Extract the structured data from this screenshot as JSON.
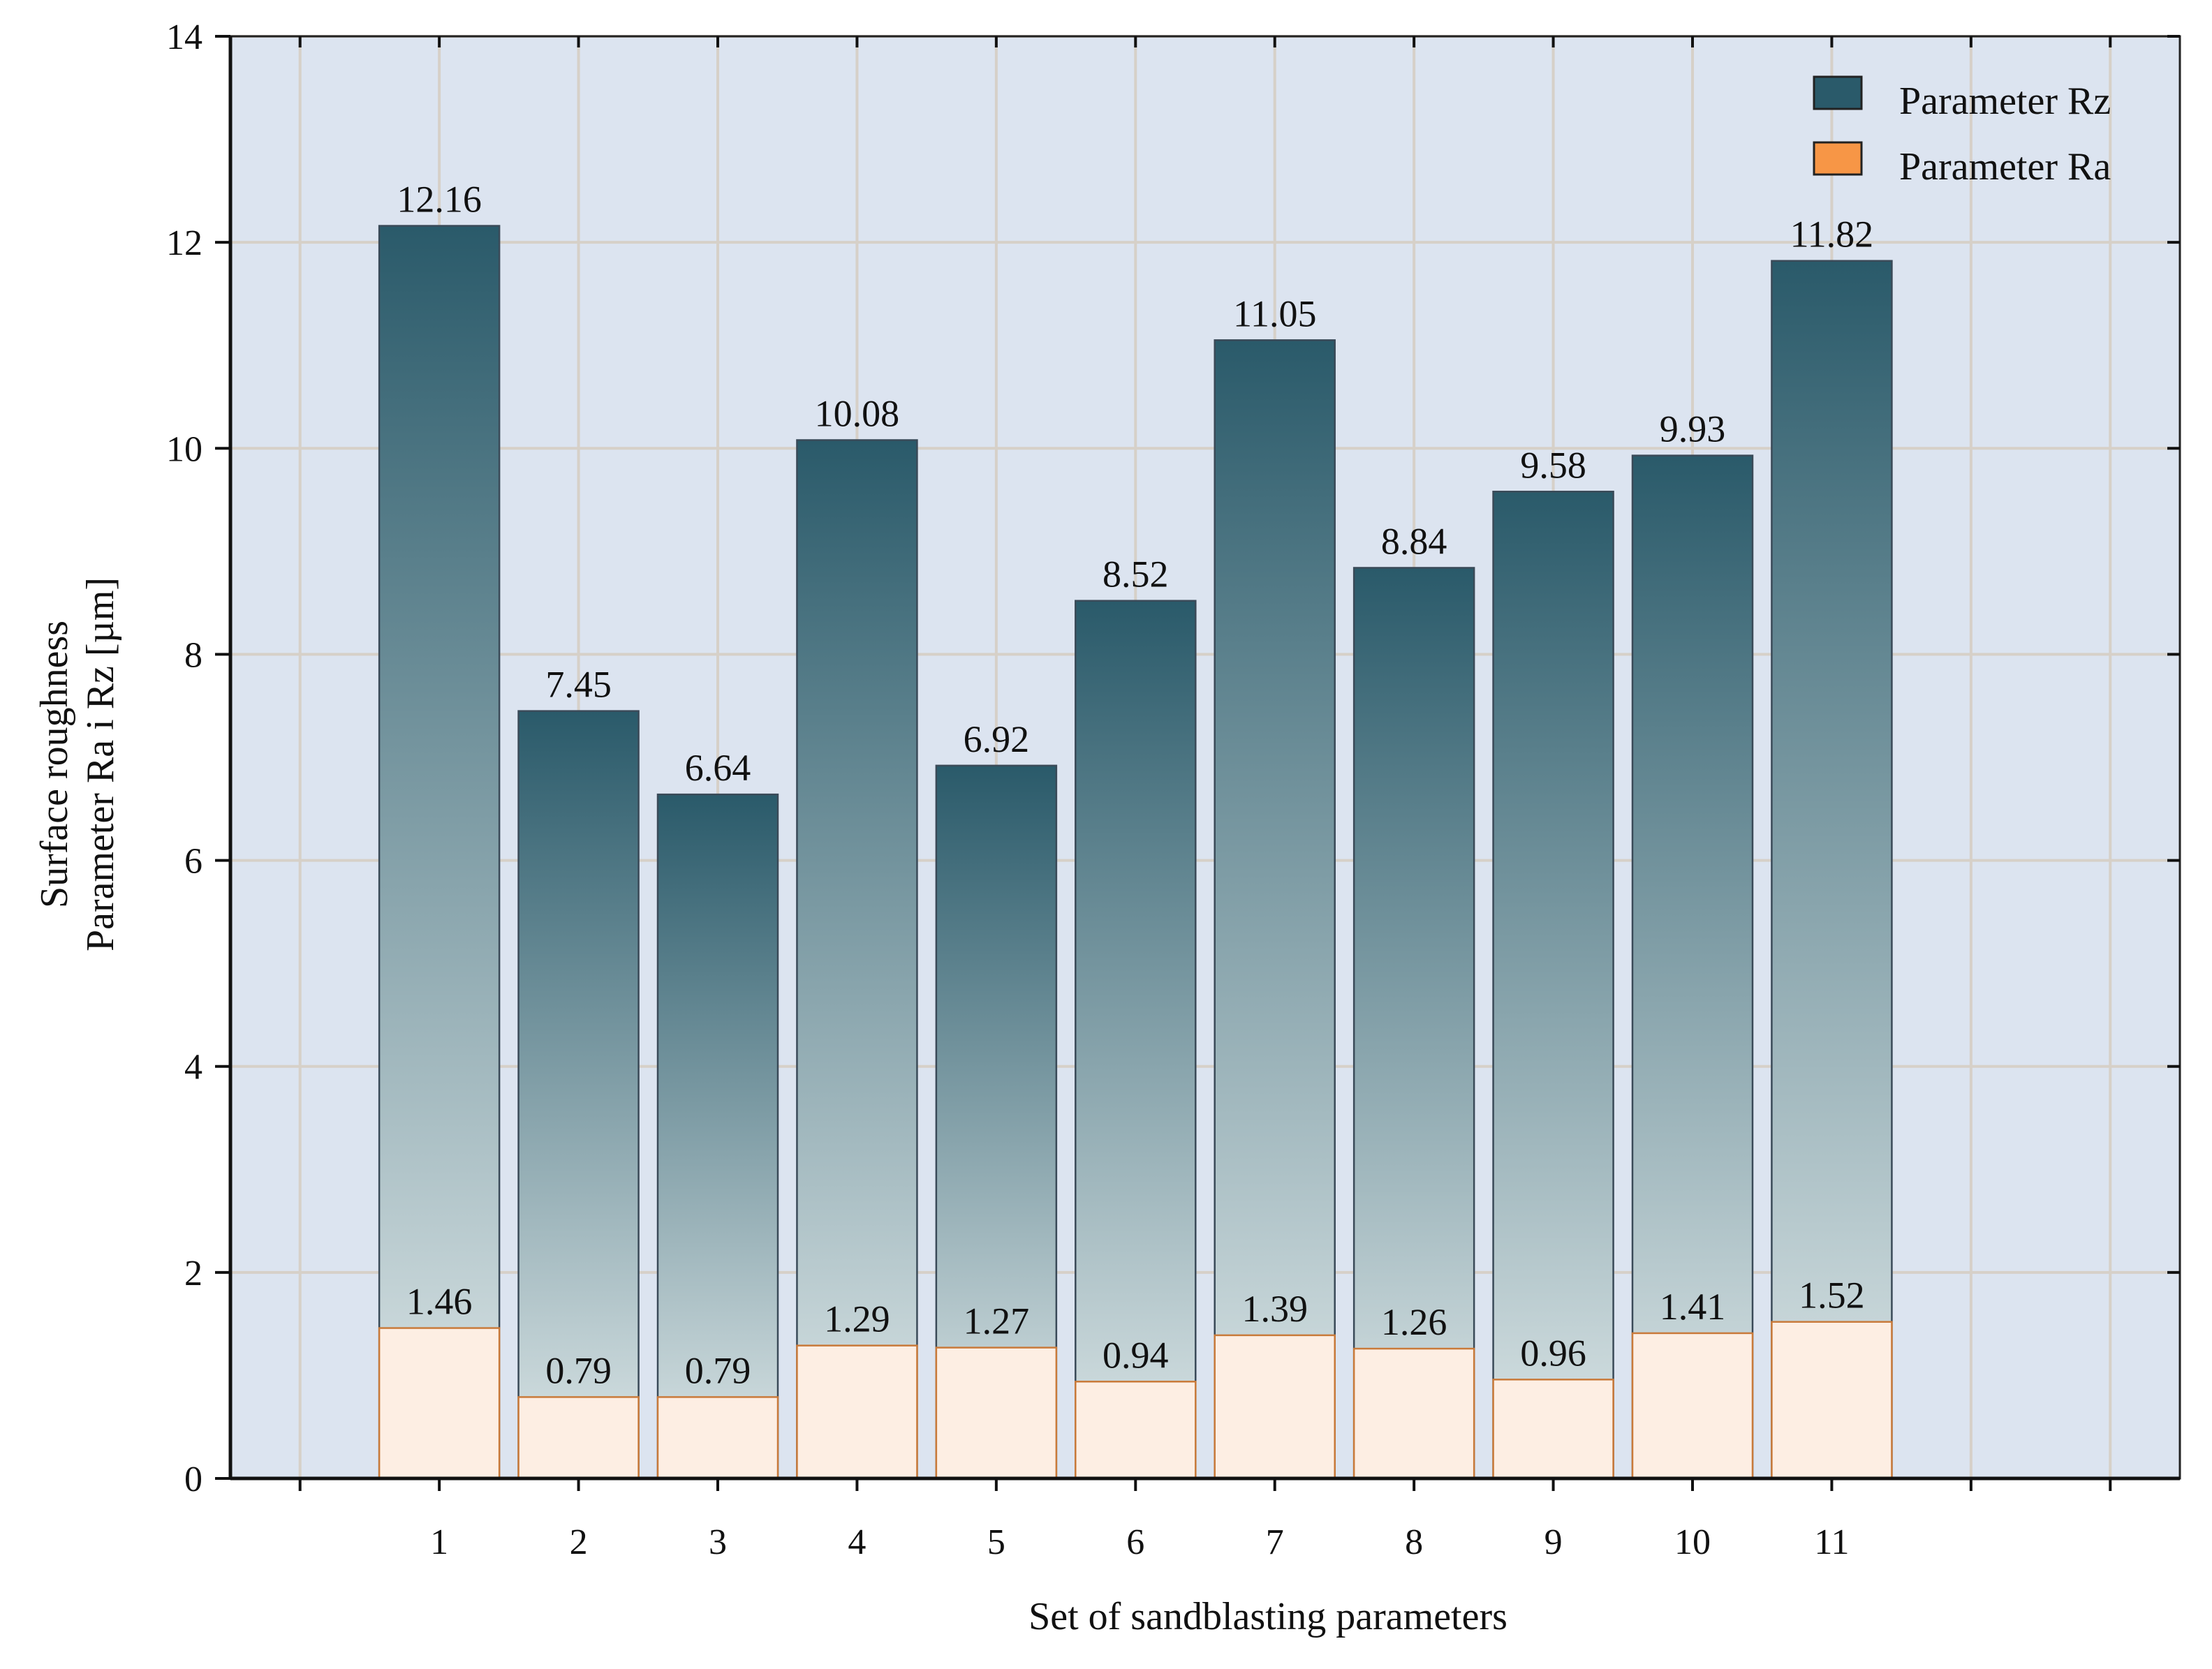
{
  "chart_data": {
    "type": "bar",
    "stacking": "overlay",
    "title": "",
    "xlabel": "Set of sandblasting parameters",
    "ylabel_lines": [
      "Surface roughness",
      "Parameter Ra i Rz [µm]"
    ],
    "categories": [
      "1",
      "2",
      "3",
      "4",
      "5",
      "6",
      "7",
      "8",
      "9",
      "10",
      "11"
    ],
    "series": [
      {
        "name": "Parameter Rz",
        "values": [
          12.16,
          7.45,
          6.64,
          10.08,
          6.92,
          8.52,
          11.05,
          8.84,
          9.58,
          9.93,
          11.82
        ],
        "color": "#2a5a6a",
        "color_light": "#dde7e8"
      },
      {
        "name": "Parameter Ra",
        "values": [
          1.46,
          0.79,
          0.79,
          1.29,
          1.27,
          0.94,
          1.39,
          1.26,
          0.96,
          1.41,
          1.52
        ],
        "color": "#f79646",
        "color_light": "#fdeee3"
      }
    ],
    "yticks": [
      "0",
      "2",
      "4",
      "6",
      "8",
      "10",
      "12",
      "14"
    ],
    "ylim": [
      0,
      14
    ],
    "xlim": [
      -1.5,
      12.5
    ],
    "grid": true,
    "legend_position": "top-right",
    "plot_background": "#dce4f0"
  }
}
